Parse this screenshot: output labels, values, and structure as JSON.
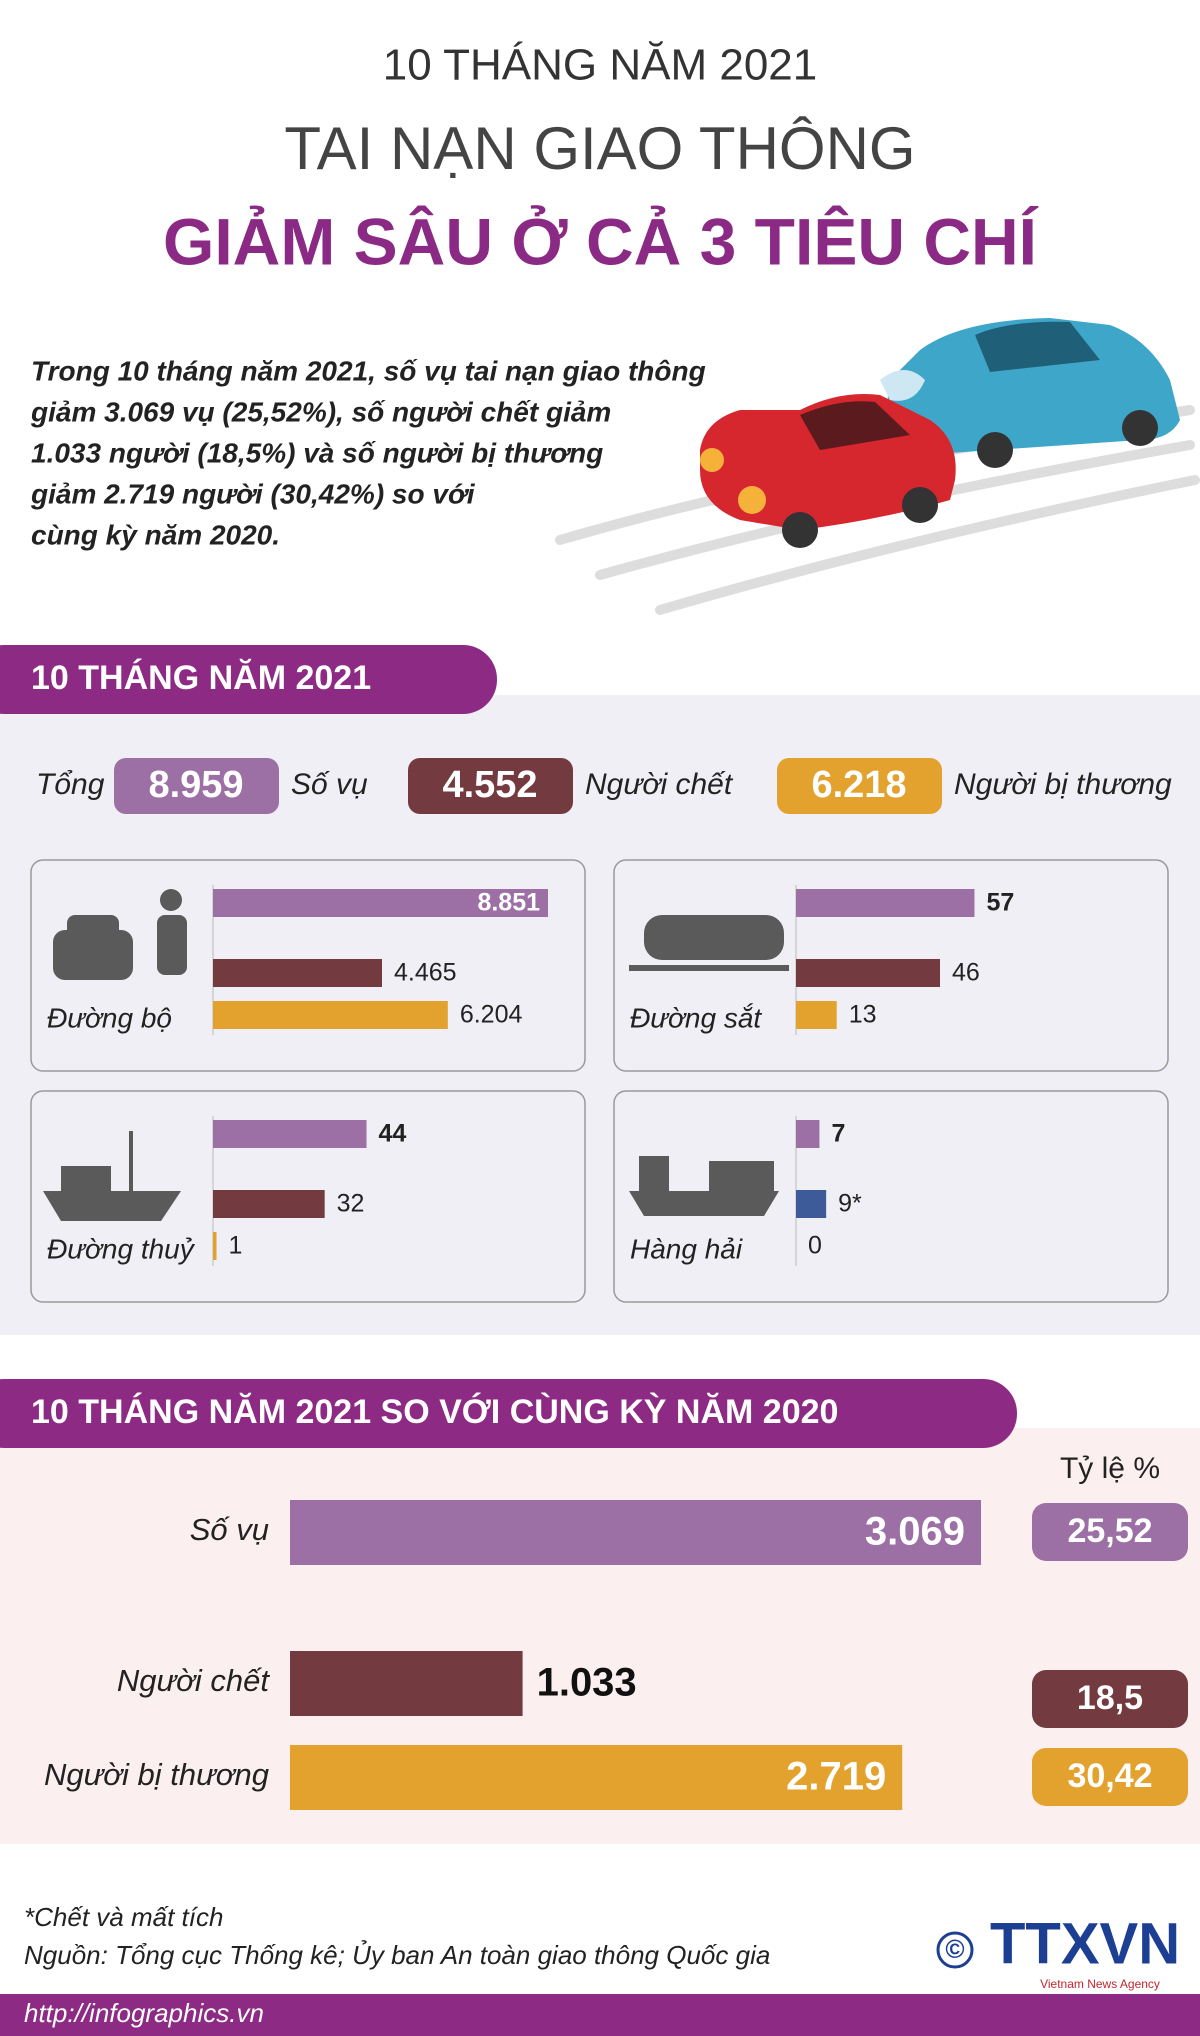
{
  "header": {
    "kicker": "10 THÁNG NĂM 2021",
    "title": "TAI NẠN GIAO THÔNG",
    "subtitle": "GIẢM SÂU Ở CẢ 3 TIÊU CHÍ"
  },
  "intro": [
    "Trong 10 tháng năm 2021, số vụ tai nạn giao thông",
    "giảm 3.069 vụ (25,52%), số người chết giảm",
    "1.033 người (18,5%) và số người bị thương",
    "giảm 2.719 người (30,42%) so với",
    "cùng kỳ năm 2020."
  ],
  "totals": {
    "title": "10 THÁNG NĂM 2021",
    "label": "Tổng",
    "items": [
      {
        "value": 8959,
        "value_label": "8.959",
        "name": "Số vụ",
        "color": "#9c6fa5"
      },
      {
        "value": 4552,
        "value_label": "4.552",
        "name": "Người chết",
        "color": "#733a3f"
      },
      {
        "value": 6218,
        "value_label": "6.218",
        "name": "Người bị thương",
        "color": "#e3a22e"
      }
    ]
  },
  "panels": [
    {
      "label": "Đường bộ",
      "values": [
        8851,
        4465,
        6204
      ],
      "value_labels": [
        "8.851",
        "4.465",
        "6.204"
      ],
      "colors": [
        "#9c6fa5",
        "#733a3f",
        "#e3a22e"
      ],
      "xlim": [
        0,
        8851
      ]
    },
    {
      "label": "Đường sắt",
      "values": [
        57,
        46,
        13
      ],
      "colors": [
        "#9c6fa5",
        "#733a3f",
        "#e3a22e"
      ],
      "xlim": [
        0,
        107
      ]
    },
    {
      "label": "Đường thuỷ",
      "values": [
        44,
        32,
        1
      ],
      "colors": [
        "#9c6fa5",
        "#733a3f",
        "#e3a22e"
      ],
      "xlim": [
        0,
        96
      ]
    },
    {
      "label": "Hàng hải",
      "values": [
        7,
        9,
        0
      ],
      "value_labels": [
        "7",
        "9*",
        "0"
      ],
      "colors": [
        "#9c6fa5",
        "#3d5a99",
        "#e3a22e"
      ],
      "xlim": [
        0,
        100
      ]
    }
  ],
  "comparison": {
    "title": "10 THÁNG NĂM 2021 SO VỚI CÙNG KỲ NĂM 2020",
    "ratio_header": "Tỷ lệ %",
    "xlim": [
      0,
      3100
    ],
    "rows": [
      {
        "name": "Số vụ",
        "value": 3069,
        "value_label": "3.069",
        "ratio": {
          "value": 25.52,
          "label": "25,52"
        },
        "color": "#9c6fa5"
      },
      {
        "name": "Người chết",
        "value": 1033,
        "value_label": "1.033",
        "ratio": {
          "value": 18.5,
          "label": "18,5"
        },
        "color": "#733a3f"
      },
      {
        "name": "Người bị thương",
        "value": 2719,
        "value_label": "2.719",
        "ratio": {
          "value": 30.42,
          "label": "30,42"
        },
        "color": "#e3a22e"
      }
    ]
  },
  "footer": {
    "note": "*Chết và mất tích",
    "source": "Nguồn: Tổng cục Thống kê; Ủy ban An toàn giao thông Quốc gia",
    "url": "http://infographics.vn",
    "copyright": "©",
    "logo": "TTXVN",
    "logo_sub": "Vietnam News Agency"
  }
}
